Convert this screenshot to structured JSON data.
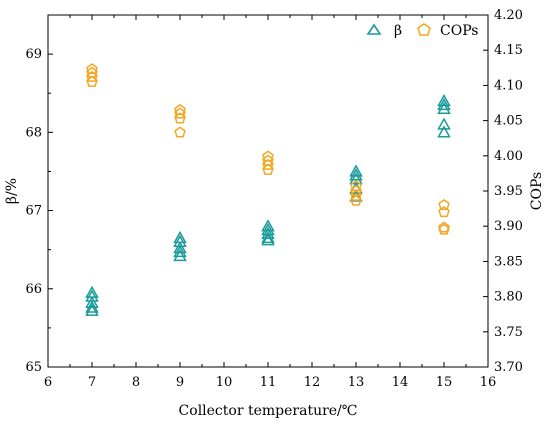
{
  "chart_data": {
    "type": "scatter",
    "xlabel": "Collector temperature/℃",
    "ylabel_left": "β/%",
    "ylabel_right": "COPs",
    "xlim": [
      6,
      16
    ],
    "ylim_left": [
      65,
      69.5
    ],
    "ylim_right": [
      3.7,
      4.2
    ],
    "x_ticks": [
      "6",
      "7",
      "8",
      "9",
      "10",
      "11",
      "12",
      "13",
      "14",
      "15",
      "16"
    ],
    "y_left_ticks": [
      "65",
      "66",
      "67",
      "68",
      "69"
    ],
    "y_right_ticks": [
      "3.70",
      "3.75",
      "3.80",
      "3.85",
      "3.90",
      "3.95",
      "4.00",
      "4.05",
      "4.10",
      "4.15",
      "4.20"
    ],
    "legend_position": "top-right",
    "series": [
      {
        "name": "β",
        "axis": "left",
        "marker": "triangle",
        "color": "#1a9a9a",
        "points": [
          {
            "x": 7,
            "y": 65.95
          },
          {
            "x": 7,
            "y": 65.9
          },
          {
            "x": 7,
            "y": 65.82
          },
          {
            "x": 7,
            "y": 65.76
          },
          {
            "x": 7,
            "y": 65.72
          },
          {
            "x": 9,
            "y": 66.65
          },
          {
            "x": 9,
            "y": 66.6
          },
          {
            "x": 9,
            "y": 66.52
          },
          {
            "x": 9,
            "y": 66.47
          },
          {
            "x": 9,
            "y": 66.42
          },
          {
            "x": 11,
            "y": 66.8
          },
          {
            "x": 11,
            "y": 66.75
          },
          {
            "x": 11,
            "y": 66.7
          },
          {
            "x": 11,
            "y": 66.65
          },
          {
            "x": 11,
            "y": 66.62
          },
          {
            "x": 13,
            "y": 67.5
          },
          {
            "x": 13,
            "y": 67.45
          },
          {
            "x": 13,
            "y": 67.4
          },
          {
            "x": 13,
            "y": 67.28
          },
          {
            "x": 13,
            "y": 67.18
          },
          {
            "x": 15,
            "y": 68.4
          },
          {
            "x": 15,
            "y": 68.35
          },
          {
            "x": 15,
            "y": 68.3
          },
          {
            "x": 15,
            "y": 68.1
          },
          {
            "x": 15,
            "y": 68.0
          }
        ]
      },
      {
        "name": "COPs",
        "axis": "right",
        "marker": "pentagon",
        "color": "#f5a623",
        "points": [
          {
            "x": 7,
            "y": 4.123
          },
          {
            "x": 7,
            "y": 4.118
          },
          {
            "x": 7,
            "y": 4.112
          },
          {
            "x": 7,
            "y": 4.105
          },
          {
            "x": 9,
            "y": 4.065
          },
          {
            "x": 9,
            "y": 4.06
          },
          {
            "x": 9,
            "y": 4.053
          },
          {
            "x": 9,
            "y": 4.033
          },
          {
            "x": 11,
            "y": 3.999
          },
          {
            "x": 11,
            "y": 3.993
          },
          {
            "x": 11,
            "y": 3.987
          },
          {
            "x": 11,
            "y": 3.98
          },
          {
            "x": 13,
            "y": 3.957
          },
          {
            "x": 13,
            "y": 3.95
          },
          {
            "x": 13,
            "y": 3.943
          },
          {
            "x": 13,
            "y": 3.936
          },
          {
            "x": 15,
            "y": 3.93
          },
          {
            "x": 15,
            "y": 3.92
          },
          {
            "x": 15,
            "y": 3.898
          },
          {
            "x": 15,
            "y": 3.895
          }
        ]
      }
    ]
  }
}
